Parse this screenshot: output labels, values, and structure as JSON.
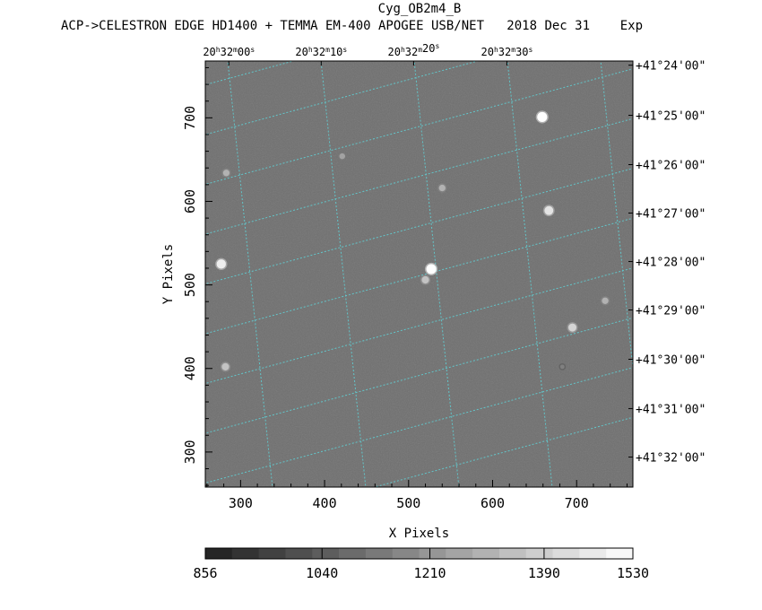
{
  "title": "Cyg_OB2m4_B",
  "subtitle": "ACP->CELESTRON EDGE HD1400 + TEMMA EM-400 APOGEE USB/NET   2018 Dec 31    Exp",
  "chart_data": {
    "type": "heatmap",
    "xlabel": "X Pixels",
    "ylabel": "Y Pixels",
    "xlim": [
      258,
      767
    ],
    "ylim": [
      258,
      768
    ],
    "x_ticks": [
      300,
      400,
      500,
      600,
      700
    ],
    "y_ticks": [
      300,
      400,
      500,
      600,
      700
    ],
    "ra_labels": [
      {
        "h": "20",
        "m": "32",
        "s": "00",
        "x": 286
      },
      {
        "h": "20",
        "m": "32",
        "s": "10",
        "x": 396
      },
      {
        "h": "20",
        "m": "32",
        "s": "20",
        "x": 506
      },
      {
        "h": "20",
        "m": "32",
        "s": "30",
        "x": 617
      }
    ],
    "dec_labels": [
      {
        "text": "+41°24'00\"",
        "y": 763
      },
      {
        "text": "+41°25'00\"",
        "y": 703
      },
      {
        "text": "+41°26'00\"",
        "y": 644
      },
      {
        "text": "+41°27'00\"",
        "y": 586
      },
      {
        "text": "+41°28'00\"",
        "y": 528
      },
      {
        "text": "+41°29'00\"",
        "y": 470
      },
      {
        "text": "+41°30'00\"",
        "y": 411
      },
      {
        "text": "+41°31'00\"",
        "y": 352
      },
      {
        "text": "+41°32'00\"",
        "y": 294
      }
    ],
    "stars": [
      {
        "x": 659,
        "y": 701,
        "brightness": 1530
      },
      {
        "x": 283,
        "y": 634,
        "brightness": 1300
      },
      {
        "x": 421,
        "y": 654,
        "brightness": 1250
      },
      {
        "x": 540,
        "y": 616,
        "brightness": 1300
      },
      {
        "x": 667,
        "y": 589,
        "brightness": 1450
      },
      {
        "x": 277,
        "y": 525,
        "brightness": 1480
      },
      {
        "x": 527,
        "y": 519,
        "brightness": 1530
      },
      {
        "x": 520,
        "y": 506,
        "brightness": 1350
      },
      {
        "x": 734,
        "y": 481,
        "brightness": 1300
      },
      {
        "x": 695,
        "y": 449,
        "brightness": 1400
      },
      {
        "x": 282,
        "y": 402,
        "brightness": 1350
      },
      {
        "x": 683,
        "y": 402,
        "brightness": 1150
      }
    ],
    "colorbar": {
      "min": 856,
      "max": 1530,
      "labels": [
        "856",
        "1040",
        "1210",
        "1390",
        "1530"
      ],
      "label_values": [
        856,
        1040,
        1210,
        1390,
        1530
      ],
      "steps": 16
    },
    "grid_color": "#5fd3d8",
    "background_level": 1100
  }
}
